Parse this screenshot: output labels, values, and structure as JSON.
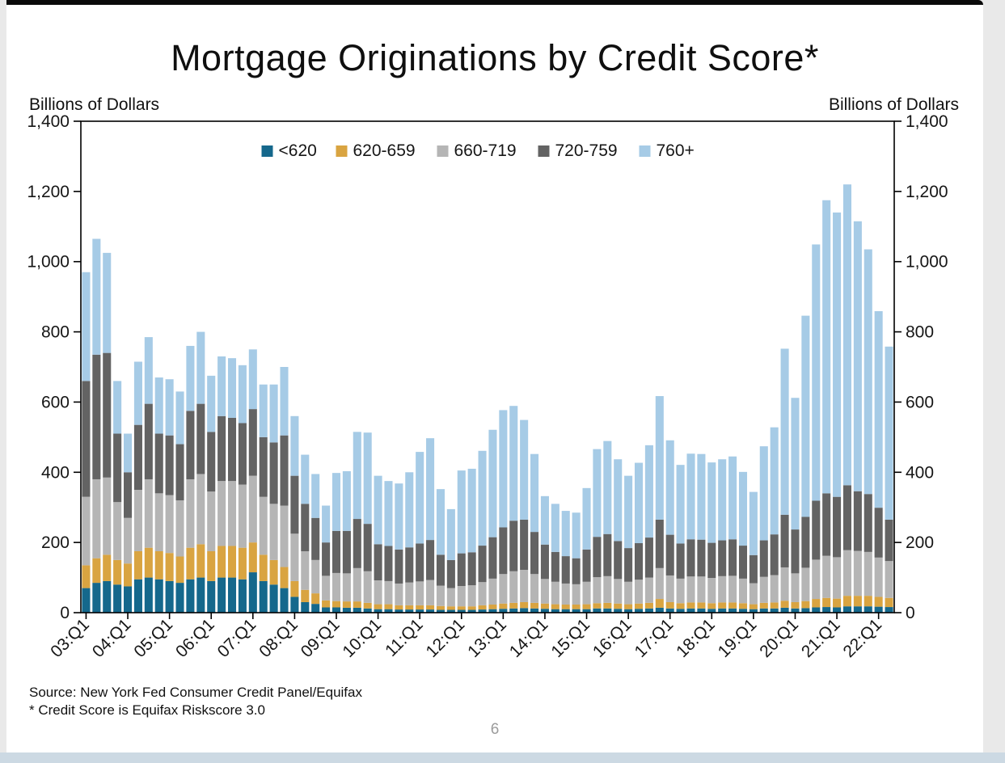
{
  "title": "Mortgage Originations by Credit Score*",
  "axis_caption_left": "Billions of Dollars",
  "axis_caption_right": "Billions of Dollars",
  "source": "Source: New York Fed Consumer Credit Panel/Equifax",
  "footnote": "* Credit Score is Equifax Riskscore 3.0",
  "page_number": "6",
  "chart_data": {
    "type": "bar",
    "stacked": true,
    "title": "Mortgage Originations by Credit Score*",
    "ylabel": "Billions of Dollars",
    "ylim": [
      0,
      1400
    ],
    "ytick_interval": 200,
    "grid": false,
    "legend_position": "top-center",
    "x_tick_every": 4,
    "x_tick_labels": [
      "03:Q1",
      "04:Q1",
      "05:Q1",
      "06:Q1",
      "07:Q1",
      "08:Q1",
      "09:Q1",
      "10:Q1",
      "11:Q1",
      "12:Q1",
      "13:Q1",
      "14:Q1",
      "15:Q1",
      "16:Q1",
      "17:Q1",
      "18:Q1",
      "19:Q1",
      "20:Q1",
      "21:Q1",
      "22:Q1"
    ],
    "x": [
      "03:Q1",
      "03:Q2",
      "03:Q3",
      "03:Q4",
      "04:Q1",
      "04:Q2",
      "04:Q3",
      "04:Q4",
      "05:Q1",
      "05:Q2",
      "05:Q3",
      "05:Q4",
      "06:Q1",
      "06:Q2",
      "06:Q3",
      "06:Q4",
      "07:Q1",
      "07:Q2",
      "07:Q3",
      "07:Q4",
      "08:Q1",
      "08:Q2",
      "08:Q3",
      "08:Q4",
      "09:Q1",
      "09:Q2",
      "09:Q3",
      "09:Q4",
      "10:Q1",
      "10:Q2",
      "10:Q3",
      "10:Q4",
      "11:Q1",
      "11:Q2",
      "11:Q3",
      "11:Q4",
      "12:Q1",
      "12:Q2",
      "12:Q3",
      "12:Q4",
      "13:Q1",
      "13:Q2",
      "13:Q3",
      "13:Q4",
      "14:Q1",
      "14:Q2",
      "14:Q3",
      "14:Q4",
      "15:Q1",
      "15:Q2",
      "15:Q3",
      "15:Q4",
      "16:Q1",
      "16:Q2",
      "16:Q3",
      "16:Q4",
      "17:Q1",
      "17:Q2",
      "17:Q3",
      "17:Q4",
      "18:Q1",
      "18:Q2",
      "18:Q3",
      "18:Q4",
      "19:Q1",
      "19:Q2",
      "19:Q3",
      "19:Q4",
      "20:Q1",
      "20:Q2",
      "20:Q3",
      "20:Q4",
      "21:Q1",
      "21:Q2",
      "21:Q3",
      "21:Q4",
      "22:Q1",
      "22:Q2"
    ],
    "series": [
      {
        "name": "<620",
        "color": "#15688c",
        "values": [
          70,
          85,
          90,
          80,
          75,
          95,
          100,
          95,
          90,
          85,
          95,
          100,
          90,
          100,
          100,
          95,
          115,
          90,
          80,
          70,
          45,
          30,
          25,
          15,
          15,
          14,
          14,
          12,
          10,
          10,
          9,
          9,
          9,
          9,
          8,
          8,
          8,
          8,
          9,
          10,
          11,
          12,
          13,
          12,
          11,
          10,
          10,
          10,
          10,
          12,
          12,
          11,
          10,
          11,
          12,
          14,
          12,
          11,
          12,
          12,
          11,
          12,
          12,
          11,
          10,
          12,
          12,
          14,
          12,
          13,
          15,
          16,
          15,
          18,
          18,
          18,
          17,
          16
        ]
      },
      {
        "name": "620-659",
        "color": "#d9a441",
        "values": [
          65,
          70,
          75,
          70,
          65,
          80,
          85,
          80,
          80,
          75,
          90,
          95,
          85,
          90,
          90,
          90,
          85,
          75,
          70,
          60,
          45,
          35,
          30,
          20,
          18,
          18,
          18,
          16,
          14,
          14,
          12,
          12,
          12,
          12,
          11,
          10,
          10,
          10,
          12,
          13,
          15,
          16,
          17,
          16,
          15,
          14,
          13,
          13,
          14,
          15,
          16,
          15,
          14,
          15,
          16,
          25,
          18,
          16,
          17,
          17,
          16,
          17,
          17,
          16,
          14,
          16,
          17,
          20,
          18,
          20,
          24,
          26,
          25,
          30,
          30,
          30,
          28,
          26
        ]
      },
      {
        "name": "660-719",
        "color": "#b5b5b5",
        "values": [
          195,
          225,
          220,
          165,
          130,
          175,
          195,
          165,
          165,
          160,
          195,
          200,
          170,
          185,
          185,
          180,
          190,
          165,
          160,
          175,
          135,
          110,
          95,
          70,
          80,
          80,
          95,
          90,
          68,
          66,
          62,
          65,
          68,
          72,
          58,
          52,
          58,
          60,
          66,
          74,
          84,
          90,
          92,
          82,
          70,
          64,
          60,
          58,
          64,
          74,
          76,
          70,
          64,
          68,
          72,
          88,
          76,
          70,
          74,
          74,
          72,
          75,
          76,
          70,
          60,
          74,
          78,
          95,
          82,
          95,
          112,
          120,
          118,
          130,
          128,
          125,
          112,
          105
        ]
      },
      {
        "name": "720-759",
        "color": "#636363",
        "values": [
          330,
          355,
          355,
          195,
          130,
          185,
          215,
          170,
          170,
          160,
          195,
          200,
          170,
          185,
          180,
          175,
          190,
          170,
          175,
          200,
          165,
          135,
          120,
          95,
          120,
          121,
          140,
          135,
          103,
          100,
          97,
          100,
          108,
          114,
          88,
          80,
          93,
          94,
          104,
          118,
          133,
          144,
          143,
          120,
          98,
          85,
          78,
          74,
          92,
          115,
          120,
          108,
          96,
          104,
          114,
          138,
          116,
          100,
          106,
          105,
          100,
          102,
          104,
          94,
          80,
          104,
          116,
          150,
          125,
          145,
          168,
          178,
          172,
          185,
          170,
          165,
          142,
          118
        ]
      },
      {
        "name": "760+",
        "color": "#a6cbe6",
        "values": [
          310,
          330,
          285,
          150,
          110,
          180,
          190,
          160,
          160,
          150,
          185,
          205,
          160,
          170,
          170,
          165,
          170,
          150,
          165,
          195,
          170,
          140,
          125,
          105,
          165,
          170,
          248,
          260,
          195,
          185,
          188,
          214,
          261,
          290,
          187,
          145,
          236,
          238,
          270,
          306,
          334,
          327,
          284,
          222,
          138,
          137,
          129,
          130,
          175,
          250,
          265,
          233,
          206,
          229,
          263,
          352,
          269,
          224,
          244,
          244,
          229,
          231,
          236,
          210,
          180,
          268,
          305,
          473,
          375,
          573,
          730,
          835,
          810,
          857,
          769,
          697,
          560,
          493
        ]
      }
    ]
  }
}
